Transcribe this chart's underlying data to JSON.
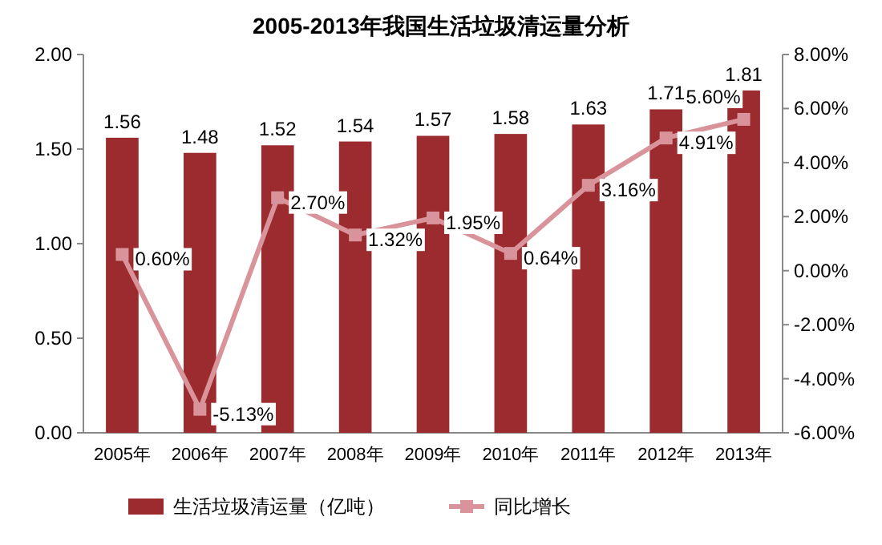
{
  "chart_data": {
    "type": "bar",
    "title": "2005-2013年我国生活垃圾清运量分析",
    "categories": [
      "2005年",
      "2006年",
      "2007年",
      "2008年",
      "2009年",
      "2010年",
      "2011年",
      "2012年",
      "2013年"
    ],
    "series": [
      {
        "name": "生活垃圾清运量（亿吨）",
        "color": "#9b2b2e",
        "values": [
          1.56,
          1.48,
          1.52,
          1.54,
          1.57,
          1.58,
          1.63,
          1.71,
          1.81
        ],
        "value_labels": [
          "1.56",
          "1.48",
          "1.52",
          "1.54",
          "1.57",
          "1.58",
          "1.63",
          "1.71",
          "1.81"
        ]
      },
      {
        "name": "同比增长",
        "type": "line",
        "axis": "y2",
        "color": "#d9939a",
        "marker": "square",
        "values": [
          0.6,
          -5.13,
          2.7,
          1.32,
          1.95,
          0.64,
          3.16,
          4.91,
          5.6
        ],
        "value_labels": [
          "0.60%",
          "-5.13%",
          "2.70%",
          "1.32%",
          "1.95%",
          "0.64%",
          "3.16%",
          "4.91%",
          "5.60%"
        ]
      }
    ],
    "ylim": [
      0,
      2
    ],
    "yticks": [
      {
        "value": 0,
        "label": "0.00"
      },
      {
        "value": 0.5,
        "label": "0.50"
      },
      {
        "value": 1,
        "label": "1.00"
      },
      {
        "value": 1.5,
        "label": "1.50"
      },
      {
        "value": 2,
        "label": "2.00"
      }
    ],
    "y2lim": [
      -6,
      8
    ],
    "y2ticks": [
      {
        "value": -6,
        "label": "-6.00%"
      },
      {
        "value": -4,
        "label": "-4.00%"
      },
      {
        "value": -2,
        "label": "-2.00%"
      },
      {
        "value": 0,
        "label": "0.00%"
      },
      {
        "value": 2,
        "label": "2.00%"
      },
      {
        "value": 4,
        "label": "4.00%"
      },
      {
        "value": 6,
        "label": "6.00%"
      },
      {
        "value": 8,
        "label": "8.00%"
      }
    ],
    "legend": "bottom",
    "grid": false
  }
}
